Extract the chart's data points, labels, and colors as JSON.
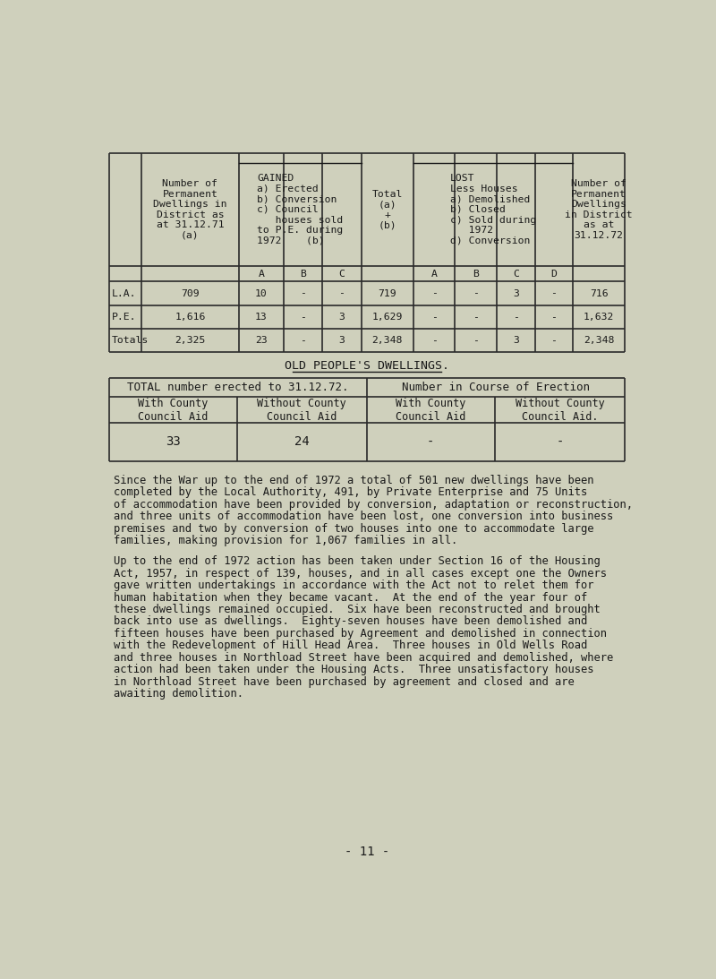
{
  "bg_color": "#cfd0bc",
  "text_color": "#1a1a1a",
  "table1": {
    "rows": [
      [
        "L.A.",
        "709",
        "10",
        "-",
        "-",
        "719",
        "-",
        "-",
        "3",
        "-",
        "716"
      ],
      [
        "P.E.",
        "1,616",
        "13",
        "-",
        "3",
        "1,629",
        "-",
        "-",
        "-",
        "-",
        "1,632"
      ],
      [
        "Totals",
        "2,325",
        "23",
        "-",
        "3",
        "2,348",
        "-",
        "-",
        "3",
        "-",
        "2,348"
      ]
    ]
  },
  "old_peoples_title": "OLD PEOPLE'S DWELLINGS.",
  "table2": {
    "header_row1": [
      "TOTAL number erected to 31.12.72.",
      "Number in Course of Erection"
    ],
    "header_row2": [
      "With County\nCouncil Aid",
      "Without County\nCouncil Aid",
      "With County\nCouncil Aid",
      "Without County\nCouncil Aid."
    ],
    "data_row": [
      "33",
      "24",
      "-",
      "-"
    ]
  },
  "para1": "Since the War up to the end of 1972 a total of 501 new dwellings have been\ncompleted by the Local Authority, 491, by Private Enterprise and 75 Units\nof accommodation have been provided by conversion, adaptation or reconstruction,\nand three units of accommodation have been lost, one conversion into business\npremises and two by conversion of two houses into one to accommodate large\nfamilies, making provision for 1,067 families in all.",
  "para2": "Up to the end of 1972 action has been taken under Section 16 of the Housing\nAct, 1957, in respect of 139, houses, and in all cases except one the Owners\ngave written undertakings in accordance with the Act not to relet them for\nhuman habitation when they became vacant.  At the end of the year four of\nthese dwellings remained occupied.  Six have been reconstructed and brought\nback into use as dwellings.  Eighty-seven houses have been demolished and\nfifteen houses have been purchased by Agreement and demolished in connection\nwith the Redevelopment of Hill Head Area.  Three houses in Old Wells Road\nand three houses in Northload Street have been acquired and demolished, where\naction had been taken under the Housing Acts.  Three unsatisfactory houses\nin Northload Street have been purchased by agreement and closed and are\nawaiting demolition.",
  "page_number": "- 11 -"
}
